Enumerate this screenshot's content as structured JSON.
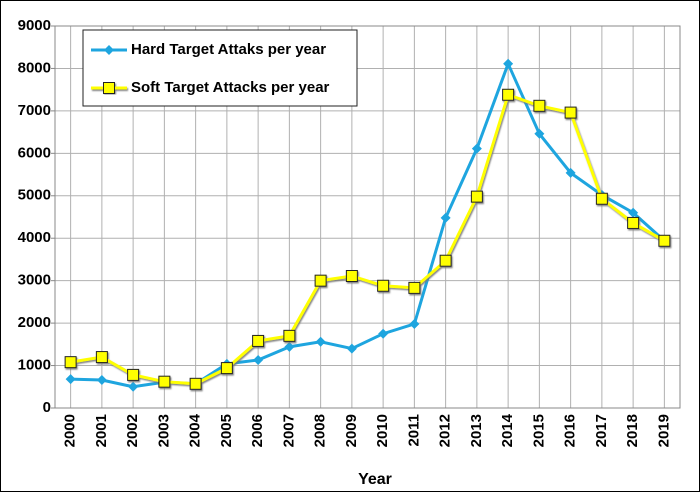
{
  "chart_data": {
    "type": "line",
    "xlabel": "Year",
    "categories": [
      "2000",
      "2001",
      "2002",
      "2003",
      "2004",
      "2005",
      "2006",
      "2007",
      "2008",
      "2009",
      "2010",
      "2011",
      "2012",
      "2013",
      "2014",
      "2015",
      "2016",
      "2017",
      "2018",
      "2019"
    ],
    "series": [
      {
        "name": "Hard Target Attaks per year",
        "color": "#1ea5df",
        "marker": "diamond",
        "values": [
          680,
          660,
          500,
          610,
          570,
          1040,
          1130,
          1440,
          1560,
          1400,
          1750,
          1980,
          4480,
          6110,
          8110,
          6460,
          5540,
          5020,
          4600,
          3940
        ]
      },
      {
        "name": "Soft Target Attacks per year",
        "color": "#ffff00",
        "marker": "square",
        "values": [
          1080,
          1200,
          780,
          620,
          570,
          940,
          1580,
          1700,
          3000,
          3110,
          2880,
          2830,
          3470,
          4980,
          7380,
          7120,
          6960,
          4930,
          4360,
          3940
        ]
      }
    ],
    "ylim": [
      0,
      9000
    ],
    "yticks": [
      0,
      1000,
      2000,
      3000,
      4000,
      5000,
      6000,
      7000,
      8000,
      9000
    ],
    "grid": true,
    "legend": "top-left"
  }
}
